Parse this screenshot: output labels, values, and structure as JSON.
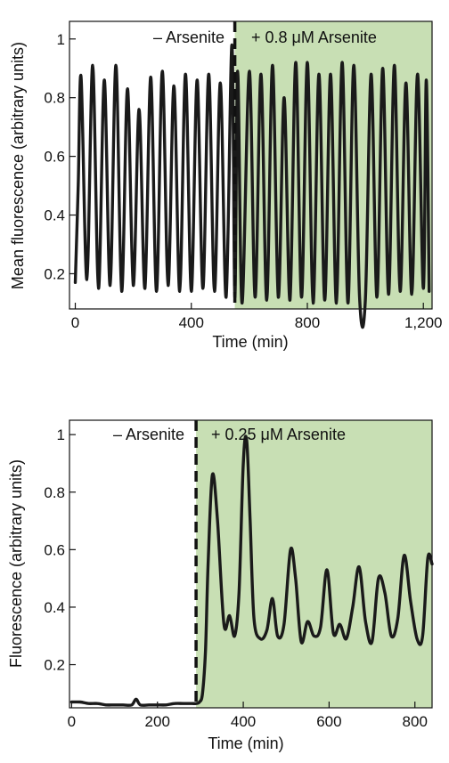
{
  "colors": {
    "treatment_shading": "#c8dfb4",
    "trace": "#1a1a1a",
    "axis": "#111111"
  },
  "chart_data": [
    {
      "type": "line",
      "ylabel": "Mean fluorescence (arbitrary units)",
      "xlabel": "Time (min)",
      "xlim": [
        -20,
        1230
      ],
      "ylim": [
        0.08,
        1.06
      ],
      "x_ticks": [
        0,
        400,
        800,
        1200
      ],
      "x_tick_labels": [
        "0",
        "400",
        "800",
        "1,200"
      ],
      "y_ticks": [
        0.2,
        0.4,
        0.6,
        0.8,
        1
      ],
      "y_tick_labels": [
        "0.2",
        "0.4",
        "0.6",
        "0.8",
        "1"
      ],
      "treatment_start": 550,
      "treatment_end": 1230,
      "annotations": {
        "before": "– Arsenite",
        "after": "+ 0.8 μM Arsenite"
      },
      "series": [
        {
          "x": [
            0,
            10,
            20,
            40,
            60,
            80,
            100,
            120,
            140,
            160,
            180,
            200,
            220,
            240,
            260,
            280,
            300,
            320,
            340,
            360,
            380,
            400,
            420,
            440,
            460,
            480,
            500,
            520,
            540,
            550,
            560,
            575,
            600,
            620,
            640,
            660,
            680,
            700,
            720,
            740,
            760,
            780,
            800,
            820,
            840,
            860,
            880,
            900,
            920,
            940,
            960,
            980,
            1000,
            1020,
            1040,
            1060,
            1080,
            1100,
            1120,
            1140,
            1160,
            1180,
            1200,
            1210,
            1220
          ],
          "y": [
            0.17,
            0.5,
            0.87,
            0.18,
            0.91,
            0.15,
            0.86,
            0.16,
            0.91,
            0.14,
            0.83,
            0.16,
            0.76,
            0.15,
            0.87,
            0.14,
            0.89,
            0.16,
            0.84,
            0.14,
            0.88,
            0.14,
            0.86,
            0.15,
            0.88,
            0.14,
            0.85,
            0.12,
            0.98,
            0.12,
            0.89,
            0.1,
            0.89,
            0.12,
            0.88,
            0.11,
            0.91,
            0.12,
            0.8,
            0.11,
            0.92,
            0.12,
            0.92,
            0.1,
            0.88,
            0.11,
            0.88,
            0.1,
            0.92,
            0.1,
            0.91,
            0.12,
            0.11,
            0.88,
            0.12,
            0.9,
            0.13,
            0.91,
            0.14,
            0.85,
            0.13,
            0.88,
            0.15,
            0.86,
            0.14
          ]
        }
      ]
    },
    {
      "type": "line",
      "ylabel": "Fluorescence (arbitrary units)",
      "xlabel": "Time (min)",
      "xlim": [
        -5,
        840
      ],
      "ylim": [
        0.05,
        1.05
      ],
      "x_ticks": [
        0,
        200,
        400,
        600,
        800
      ],
      "x_tick_labels": [
        "0",
        "200",
        "400",
        "600",
        "800"
      ],
      "y_ticks": [
        0.2,
        0.4,
        0.6,
        0.8,
        1
      ],
      "y_tick_labels": [
        "0.2",
        "0.4",
        "0.6",
        "0.8",
        "1"
      ],
      "treatment_start": 290,
      "treatment_end": 840,
      "annotations": {
        "before": "– Arsenite",
        "after": "+ 0.25 μM Arsenite"
      },
      "series": [
        {
          "x": [
            0,
            20,
            40,
            60,
            80,
            100,
            120,
            140,
            150,
            160,
            180,
            200,
            220,
            240,
            260,
            280,
            290,
            298,
            305,
            312,
            318,
            328,
            340,
            355,
            368,
            380,
            390,
            400,
            408,
            416,
            425,
            440,
            455,
            468,
            480,
            495,
            510,
            522,
            535,
            550,
            565,
            580,
            595,
            610,
            625,
            640,
            655,
            670,
            685,
            700,
            715,
            730,
            745,
            760,
            775,
            790,
            805,
            818,
            830,
            840
          ],
          "y": [
            0.07,
            0.07,
            0.065,
            0.065,
            0.06,
            0.06,
            0.06,
            0.06,
            0.08,
            0.06,
            0.06,
            0.06,
            0.06,
            0.065,
            0.065,
            0.065,
            0.065,
            0.07,
            0.1,
            0.25,
            0.55,
            0.86,
            0.7,
            0.34,
            0.37,
            0.3,
            0.45,
            0.9,
            0.98,
            0.7,
            0.36,
            0.29,
            0.32,
            0.43,
            0.3,
            0.34,
            0.6,
            0.5,
            0.28,
            0.35,
            0.3,
            0.33,
            0.53,
            0.31,
            0.34,
            0.29,
            0.4,
            0.54,
            0.35,
            0.28,
            0.5,
            0.45,
            0.3,
            0.36,
            0.58,
            0.42,
            0.29,
            0.3,
            0.57,
            0.55
          ]
        }
      ]
    }
  ]
}
